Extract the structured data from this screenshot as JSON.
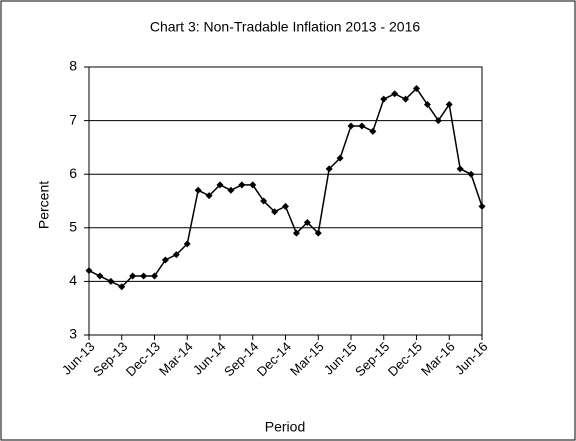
{
  "chart_data": {
    "type": "line",
    "title": "Chart 3: Non-Tradable  Inflation  2013 - 2016",
    "x_label": "Period",
    "y_label": "Percent",
    "categories": [
      "Jun-13",
      null,
      null,
      "Sep-13",
      null,
      null,
      "Dec-13",
      null,
      null,
      "Mar-14",
      null,
      null,
      "Jun-14",
      null,
      null,
      "Sep-14",
      null,
      null,
      "Dec-14",
      null,
      null,
      "Mar-15",
      null,
      null,
      "Jun-15",
      null,
      null,
      "Sep-15",
      null,
      null,
      "Dec-15",
      null,
      null,
      "Mar-16",
      null,
      null,
      "Jun-16"
    ],
    "series": [
      {
        "name": "Non-Tradable Inflation",
        "color": "#000000",
        "values": [
          4.2,
          4.1,
          4.0,
          3.9,
          4.1,
          4.1,
          4.1,
          4.4,
          4.5,
          4.7,
          5.7,
          5.6,
          5.8,
          5.7,
          5.8,
          5.8,
          5.5,
          5.3,
          5.4,
          4.9,
          5.1,
          4.9,
          6.1,
          6.3,
          6.9,
          6.9,
          6.8,
          7.4,
          7.5,
          7.4,
          7.6,
          7.3,
          7.0,
          7.3,
          6.1,
          6.0,
          5.4
        ]
      }
    ],
    "ylim": [
      3,
      8
    ],
    "yticks": [
      3,
      4,
      5,
      6,
      7,
      8
    ],
    "grid": true
  }
}
